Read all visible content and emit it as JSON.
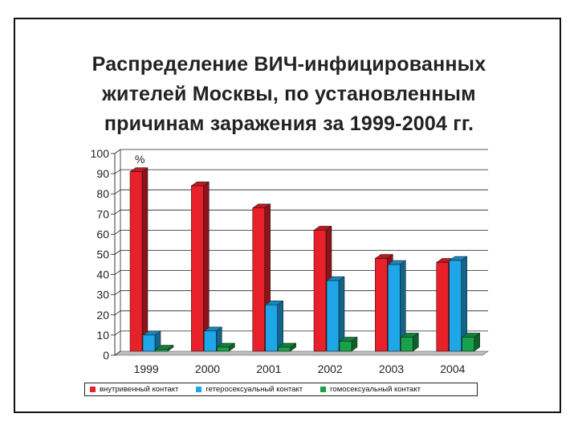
{
  "title_lines": [
    "Распределение ВИЧ-инфицированных",
    "жителей Москвы, по установленным",
    "причинам заражения за 1999-2004 гг."
  ],
  "chart_data": {
    "type": "bar",
    "title": "Распределение ВИЧ-инфицированных жителей Москвы, по установленным причинам заражения за 1999-2004 гг.",
    "unit_label": "%",
    "categories": [
      "1999",
      "2000",
      "2001",
      "2002",
      "2003",
      "2004"
    ],
    "series": [
      {
        "name": "внутривенный контакт",
        "color": "#e8202a",
        "values": [
          89,
          82,
          71,
          60,
          46,
          44
        ]
      },
      {
        "name": "гетеросексуальный контакт",
        "color": "#1ea6e8",
        "values": [
          8,
          10,
          23,
          35,
          43,
          45
        ]
      },
      {
        "name": "гомосексуальный контакт",
        "color": "#16a34a",
        "values": [
          1,
          2,
          2,
          5,
          7,
          7
        ]
      }
    ],
    "y_ticks": [
      0,
      10,
      20,
      30,
      40,
      50,
      60,
      70,
      80,
      90,
      100
    ],
    "ylim": [
      0,
      100
    ],
    "grid": true,
    "legend_position": "bottom"
  }
}
